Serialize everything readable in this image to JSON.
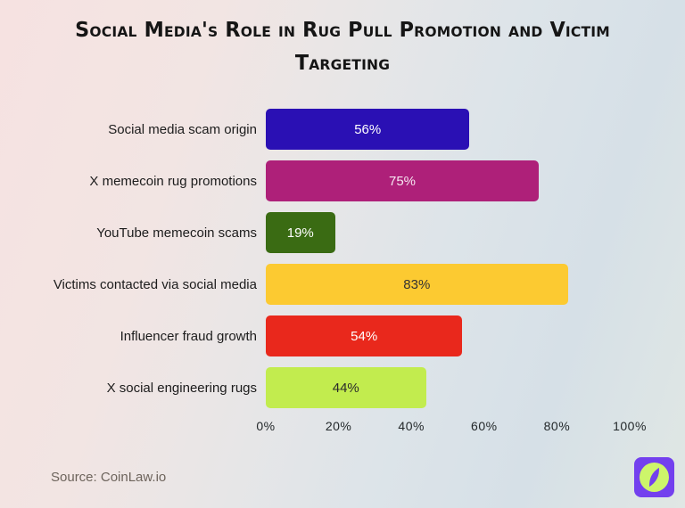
{
  "title": "Social Media's Role in Rug Pull Promotion and Victim Targeting",
  "source_label": "Source: CoinLaw.io",
  "logo": {
    "name": "coinlaw-logo",
    "square_color": "#7340ee",
    "circle_color": "#cdf56a"
  },
  "chart_data": {
    "type": "bar",
    "orientation": "horizontal",
    "title": "Social Media's Role in Rug Pull Promotion and Victim Targeting",
    "categories": [
      "Social media scam origin",
      "X memecoin rug promotions",
      "YouTube memecoin scams",
      "Victims contacted via social media",
      "Influencer fraud growth",
      "X social engineering rugs"
    ],
    "values": [
      56,
      75,
      19,
      83,
      54,
      44
    ],
    "value_labels": [
      "56%",
      "75%",
      "19%",
      "83%",
      "54%",
      "44%"
    ],
    "bar_colors": [
      "#2a10b4",
      "#ae2079",
      "#3a6b13",
      "#fcca31",
      "#e9281c",
      "#c2ec4e"
    ],
    "value_text_colors": [
      "#ffffff",
      "#f6e7f1",
      "#ffffff",
      "#333333",
      "#ffffff",
      "#2a2a2a"
    ],
    "xlabel": "",
    "ylabel": "",
    "xlim": [
      0,
      100
    ],
    "x_ticks": [
      "0%",
      "20%",
      "40%",
      "60%",
      "80%",
      "100%"
    ],
    "grid": false,
    "legend": false
  }
}
